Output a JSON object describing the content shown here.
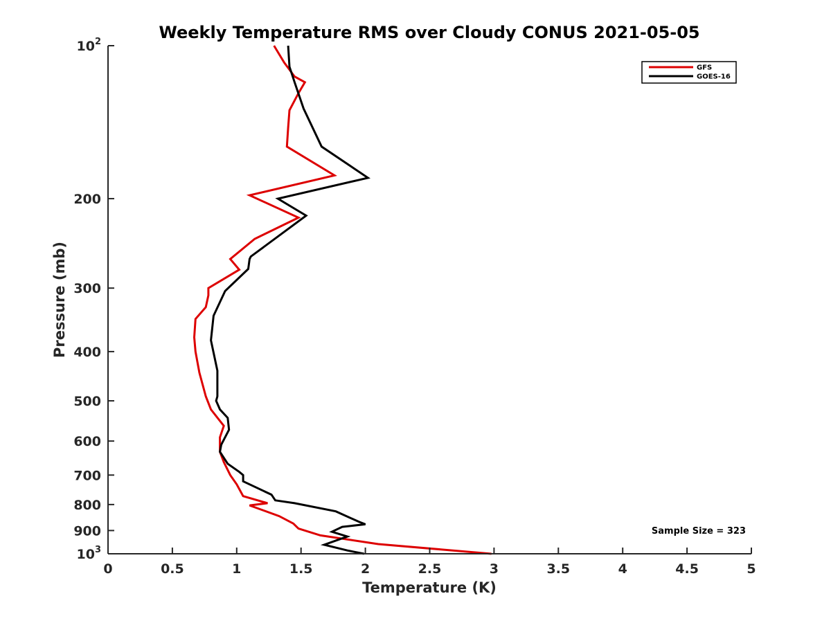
{
  "chart_data": {
    "type": "line",
    "title": "Weekly Temperature RMS over Cloudy CONUS 2021-05-05",
    "xlabel": "Temperature (K)",
    "ylabel": "Pressure (mb)",
    "xlim": [
      0,
      5
    ],
    "ylim": [
      100,
      1000
    ],
    "y_scale": "log",
    "y_reversed": true,
    "grid": false,
    "legend_position": "top-right",
    "x_ticks": [
      0,
      0.5,
      1,
      1.5,
      2,
      2.5,
      3,
      3.5,
      4,
      4.5,
      5
    ],
    "x_tick_labels": [
      "0",
      "0.5",
      "1",
      "1.5",
      "2",
      "2.5",
      "3",
      "3.5",
      "4",
      "4.5",
      "5"
    ],
    "y_ticks": [
      100,
      200,
      300,
      400,
      500,
      600,
      700,
      800,
      900,
      1000
    ],
    "y_tick_labels": [
      {
        "base": "10",
        "exp": "2"
      },
      {
        "base": "200"
      },
      {
        "base": "300"
      },
      {
        "base": "400"
      },
      {
        "base": "500"
      },
      {
        "base": "600"
      },
      {
        "base": "700"
      },
      {
        "base": "800"
      },
      {
        "base": "900"
      },
      {
        "base": "10",
        "exp": "3"
      }
    ],
    "annotation": "Sample Size = 323",
    "series": [
      {
        "name": "GFS",
        "color": "#dd0000",
        "x": [
          1.29,
          1.37,
          1.45,
          1.53,
          1.48,
          1.41,
          1.4,
          1.39,
          1.76,
          1.1,
          1.48,
          1.14,
          0.95,
          1.02,
          0.78,
          0.78,
          0.76,
          0.68,
          0.67,
          0.68,
          0.71,
          0.76,
          0.8,
          0.9,
          0.87,
          0.87,
          0.9,
          0.95,
          1.0,
          1.05,
          1.24,
          1.1,
          1.33,
          1.44,
          1.48,
          1.65,
          2.1,
          2.98
        ],
        "y": [
          100,
          108,
          115,
          118,
          124,
          134,
          145,
          158,
          180,
          197,
          218,
          240,
          263,
          276,
          300,
          310,
          327,
          345,
          375,
          400,
          440,
          490,
          520,
          560,
          590,
          630,
          660,
          700,
          730,
          770,
          795,
          803,
          843,
          872,
          892,
          920,
          957,
          1000
        ]
      },
      {
        "name": "GOES-16",
        "color": "#000000",
        "x": [
          1.4,
          1.41,
          1.45,
          1.52,
          1.66,
          2.02,
          1.32,
          1.54,
          1.11,
          1.1,
          1.09,
          0.91,
          0.82,
          0.8,
          0.85,
          0.85,
          0.84,
          0.87,
          0.93,
          0.94,
          0.88,
          0.87,
          0.93,
          1.02,
          1.05,
          1.05,
          1.27,
          1.3,
          1.45,
          1.77,
          1.95,
          2.0,
          1.82,
          1.74,
          1.86,
          1.68,
          1.86,
          1.99
        ],
        "y": [
          100,
          110,
          118,
          133,
          158,
          182,
          200,
          216,
          260,
          263,
          275,
          304,
          340,
          380,
          436,
          490,
          500,
          520,
          540,
          570,
          610,
          630,
          665,
          690,
          700,
          720,
          765,
          785,
          795,
          825,
          865,
          875,
          885,
          905,
          925,
          960,
          985,
          1000
        ]
      }
    ]
  }
}
